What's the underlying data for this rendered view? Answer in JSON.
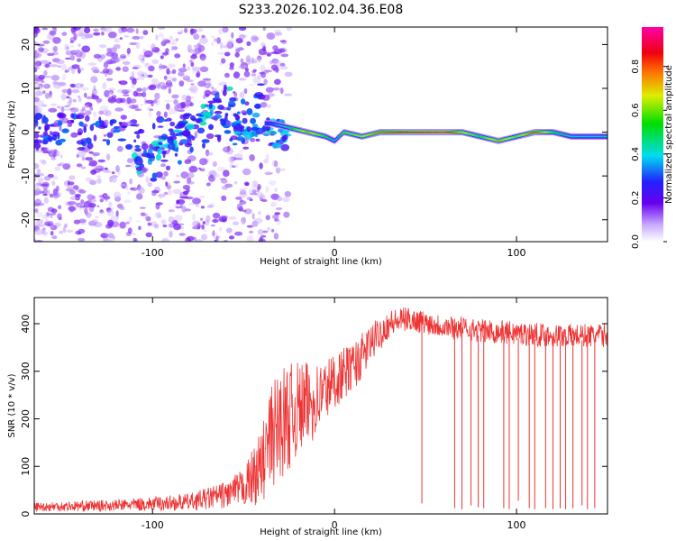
{
  "figure_title": "S233.2026.102.04.36.E08",
  "colors": {
    "snr_line": "#ee3333",
    "ridge_core": "#e8202a",
    "scatter": "#8a3cff"
  },
  "chart_data": [
    {
      "type": "heatmap",
      "name": "spectrogram",
      "xlabel": "Height of straight line (km)",
      "ylabel": "Frequency (Hz)",
      "xlim": [
        -165,
        150
      ],
      "ylim": [
        -25,
        24
      ],
      "xticks": [
        -100,
        0,
        100
      ],
      "xtick_labels": [
        "-100",
        "0",
        "100"
      ],
      "yticks": [
        20,
        10,
        0,
        -10,
        -20
      ],
      "ytick_labels": [
        "20",
        "10",
        "0",
        "-10",
        "-20"
      ],
      "colorbar": {
        "label": "Normalized spectral amplitude",
        "range": [
          0,
          0.98
        ],
        "ticks": [
          0.0,
          0.2,
          0.4,
          0.6,
          0.8
        ],
        "tick_labels": [
          "0.0",
          "0.2",
          "0.4",
          "0.6",
          "0.8"
        ]
      },
      "ridge": {
        "x": [
          -35,
          -25,
          -15,
          -5,
          0,
          5,
          15,
          25,
          40,
          60,
          70,
          80,
          90,
          100,
          110,
          120,
          130,
          140,
          150
        ],
        "freq": [
          2,
          1,
          0,
          -1,
          -2,
          0,
          -1,
          0,
          0,
          0,
          0,
          -1,
          -2,
          -1,
          0,
          0,
          -1,
          -1,
          -1
        ],
        "amplitude": [
          0.3,
          0.5,
          0.75,
          0.55,
          0.4,
          0.6,
          0.65,
          0.8,
          0.9,
          0.95,
          0.7,
          0.55,
          0.75,
          0.6,
          0.85,
          0.55,
          0.45,
          0.4,
          0.45
        ]
      }
    },
    {
      "type": "line",
      "name": "snr",
      "xlabel": "Height of straight line (km)",
      "ylabel": "SNR (10 * v/v)",
      "xlim": [
        -165,
        150
      ],
      "ylim": [
        0,
        455
      ],
      "xticks": [
        -100,
        0,
        100
      ],
      "xtick_labels": [
        "-100",
        "0",
        "100"
      ],
      "yticks": [
        0,
        100,
        200,
        300,
        400
      ],
      "ytick_labels": [
        "0",
        "100",
        "200",
        "300",
        "400"
      ],
      "envelope": {
        "x": [
          -165,
          -120,
          -80,
          -60,
          -50,
          -40,
          -35,
          -30,
          -20,
          -10,
          0,
          10,
          15,
          20,
          30,
          40,
          60,
          80,
          100,
          120,
          150
        ],
        "mean": [
          15,
          18,
          25,
          40,
          55,
          100,
          160,
          190,
          220,
          240,
          280,
          310,
          330,
          360,
          400,
          410,
          395,
          385,
          380,
          375,
          375
        ],
        "noise": [
          10,
          12,
          18,
          28,
          40,
          80,
          110,
          120,
          100,
          80,
          60,
          50,
          50,
          40,
          30,
          25,
          25,
          25,
          25,
          25,
          25
        ]
      },
      "dropouts": [
        {
          "x": 48,
          "min": 22
        },
        {
          "x": 66,
          "min": 12
        },
        {
          "x": 70,
          "min": 10
        },
        {
          "x": 75,
          "min": 18
        },
        {
          "x": 79,
          "min": 14
        },
        {
          "x": 82,
          "min": 12
        },
        {
          "x": 93,
          "min": 12
        },
        {
          "x": 96,
          "min": 10
        },
        {
          "x": 101,
          "min": 28
        },
        {
          "x": 107,
          "min": 12
        },
        {
          "x": 110,
          "min": 10
        },
        {
          "x": 116,
          "min": 12
        },
        {
          "x": 120,
          "min": 10
        },
        {
          "x": 124,
          "min": 12
        },
        {
          "x": 127,
          "min": 10
        },
        {
          "x": 131,
          "min": 12
        },
        {
          "x": 136,
          "min": 18
        },
        {
          "x": 139,
          "min": 10
        },
        {
          "x": 143,
          "min": 12
        }
      ]
    }
  ]
}
